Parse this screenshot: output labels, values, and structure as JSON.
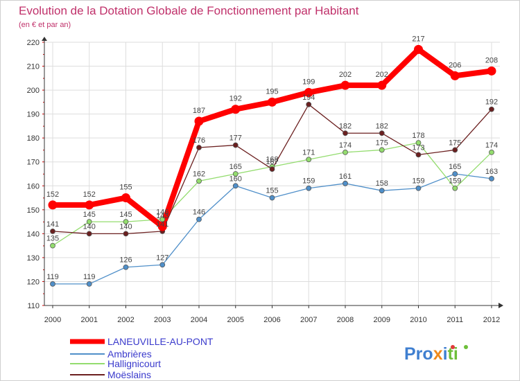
{
  "chart_data": {
    "type": "line",
    "title": "Evolution de la Dotation Globale de Fonctionnement par Habitant",
    "subtitle": "(en € et par an)",
    "xlabel": "",
    "ylabel": "",
    "categories": [
      "2000",
      "2001",
      "2002",
      "2003",
      "2004",
      "2005",
      "2006",
      "2007",
      "2008",
      "2009",
      "2010",
      "2011",
      "2012"
    ],
    "ylim": [
      110,
      220
    ],
    "yticks": [
      110,
      120,
      130,
      140,
      150,
      160,
      170,
      180,
      190,
      200,
      210,
      220
    ],
    "grid": true,
    "legend_position": "bottom-left",
    "series": [
      {
        "name": "Ambrières",
        "color": "#4f8fc9",
        "values": [
          119,
          119,
          126,
          127,
          146,
          160,
          155,
          159,
          161,
          158,
          159,
          165,
          163
        ]
      },
      {
        "name": "Hallignicourt",
        "color": "#93dc6e",
        "values": [
          135,
          145,
          145,
          146,
          162,
          165,
          168,
          171,
          174,
          175,
          178,
          159,
          174
        ]
      },
      {
        "name": "Moëslains",
        "color": "#6b1f1f",
        "values": [
          141,
          140,
          140,
          141,
          176,
          177,
          167,
          194,
          182,
          182,
          173,
          175,
          192
        ]
      },
      {
        "name": "LANEUVILLE-AU-PONT",
        "color": "#ff0000",
        "values": [
          152,
          152,
          155,
          143,
          187,
          192,
          195,
          199,
          202,
          202,
          217,
          206,
          208
        ]
      }
    ],
    "legend_order": [
      "LANEUVILLE-AU-PONT",
      "Ambrières",
      "Hallignicourt",
      "Moëslains"
    ]
  },
  "logo": {
    "text": "Proxiti"
  },
  "colors": {
    "title": "#c0306a",
    "grid": "#dddddd",
    "axis": "#333333",
    "tick_mark": "#cc0000",
    "legend_text": "#3a3acc"
  }
}
